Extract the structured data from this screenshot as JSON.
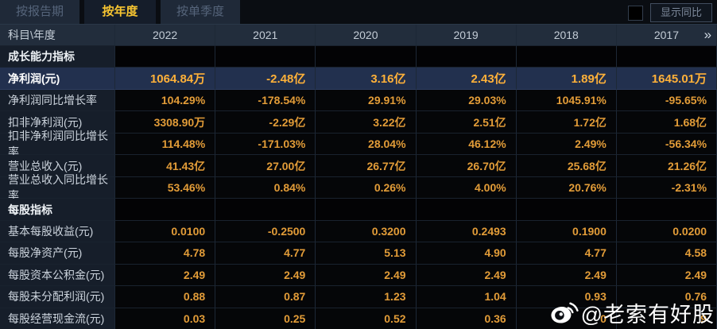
{
  "tabs": [
    {
      "label": "按报告期",
      "active": false
    },
    {
      "label": "按年度",
      "active": true
    },
    {
      "label": "按单季度",
      "active": false
    }
  ],
  "controls": {
    "show_yoy_label": "显示同比",
    "yoy_checkbox_checked": false
  },
  "table": {
    "corner_header": "科目\\年度",
    "year_columns": [
      "2022",
      "2021",
      "2020",
      "2019",
      "2018",
      "2017"
    ],
    "more_years_icon": "»",
    "rows": [
      {
        "type": "section",
        "label": "成长能力指标",
        "values": [
          "",
          "",
          "",
          "",
          "",
          ""
        ]
      },
      {
        "type": "highlight",
        "label": "净利润(元)",
        "values": [
          "1064.84万",
          "-2.48亿",
          "3.16亿",
          "2.43亿",
          "1.89亿",
          "1645.01万"
        ]
      },
      {
        "type": "normal",
        "label": "净利润同比增长率",
        "values": [
          "104.29%",
          "-178.54%",
          "29.91%",
          "29.03%",
          "1045.91%",
          "-95.65%"
        ]
      },
      {
        "type": "normal",
        "label": "扣非净利润(元)",
        "values": [
          "3308.90万",
          "-2.29亿",
          "3.22亿",
          "2.51亿",
          "1.72亿",
          "1.68亿"
        ]
      },
      {
        "type": "normal",
        "label": "扣非净利润同比增长率",
        "values": [
          "114.48%",
          "-171.03%",
          "28.04%",
          "46.12%",
          "2.49%",
          "-56.34%"
        ]
      },
      {
        "type": "normal",
        "label": "营业总收入(元)",
        "values": [
          "41.43亿",
          "27.00亿",
          "26.77亿",
          "26.70亿",
          "25.68亿",
          "21.26亿"
        ]
      },
      {
        "type": "normal",
        "label": "营业总收入同比增长率",
        "values": [
          "53.46%",
          "0.84%",
          "0.26%",
          "4.00%",
          "20.76%",
          "-2.31%"
        ]
      },
      {
        "type": "section",
        "label": "每股指标",
        "values": [
          "",
          "",
          "",
          "",
          "",
          ""
        ]
      },
      {
        "type": "normal",
        "label": "基本每股收益(元)",
        "values": [
          "0.0100",
          "-0.2500",
          "0.3200",
          "0.2493",
          "0.1900",
          "0.0200"
        ]
      },
      {
        "type": "normal",
        "label": "每股净资产(元)",
        "values": [
          "4.78",
          "4.77",
          "5.13",
          "4.90",
          "4.77",
          "4.58"
        ]
      },
      {
        "type": "normal",
        "label": "每股资本公积金(元)",
        "values": [
          "2.49",
          "2.49",
          "2.49",
          "2.49",
          "2.49",
          "2.49"
        ]
      },
      {
        "type": "normal",
        "label": "每股未分配利润(元)",
        "values": [
          "0.88",
          "0.87",
          "1.23",
          "1.04",
          "0.93",
          "0.76"
        ]
      },
      {
        "type": "normal",
        "label": "每股经营现金流(元)",
        "values": [
          "0.03",
          "0.25",
          "0.52",
          "0.36",
          "0",
          "9"
        ]
      }
    ]
  },
  "watermark": {
    "icon": "weibo-icon",
    "text": "@老索有好股"
  },
  "colors": {
    "background": "#0a0d12",
    "header_bg": "#222d3c",
    "label_column_bg": "#161e2a",
    "data_cell_bg": "#050608",
    "highlight_row_bg": "#22304e",
    "value_gold": "#e29c38",
    "highlight_value_gold": "#ffb139",
    "active_tab_text": "#f7c531",
    "label_text": "#ccd4dd",
    "watermark_color": "#ffffff"
  }
}
